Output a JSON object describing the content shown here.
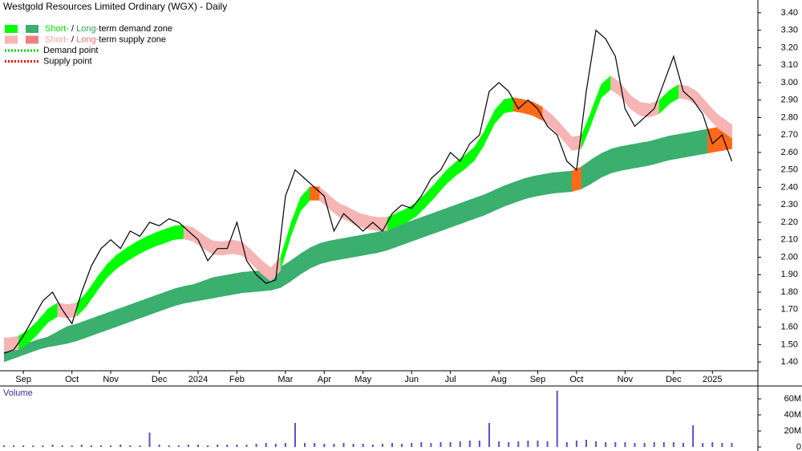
{
  "chart_data": [
    {
      "type": "line",
      "title": "Westgold Resources Limited Ordinary (WGX) - Daily",
      "categories": [
        null,
        null,
        "Sep",
        null,
        null,
        null,
        null,
        "Oct",
        null,
        null,
        null,
        "Nov",
        null,
        null,
        null,
        null,
        "Dec",
        null,
        null,
        null,
        "2024",
        null,
        null,
        null,
        "Feb",
        null,
        null,
        null,
        null,
        "Mar",
        null,
        null,
        null,
        "Apr",
        null,
        null,
        null,
        "May",
        null,
        null,
        null,
        null,
        "Jun",
        null,
        null,
        null,
        "Jul",
        null,
        null,
        null,
        null,
        "Aug",
        null,
        null,
        null,
        "Sep",
        null,
        null,
        null,
        "Oct",
        null,
        null,
        null,
        null,
        "Nov",
        null,
        null,
        null,
        null,
        "Dec",
        null,
        null,
        null,
        "2025",
        null,
        null
      ],
      "series": [
        {
          "color": "#000000",
          "values": [
            1.45,
            1.47,
            1.55,
            1.65,
            1.75,
            1.8,
            1.7,
            1.62,
            1.8,
            1.95,
            2.05,
            2.1,
            2.05,
            2.15,
            2.12,
            2.2,
            2.18,
            2.22,
            2.2,
            2.15,
            2.1,
            1.98,
            2.05,
            2.05,
            2.2,
            1.98,
            1.9,
            1.85,
            1.87,
            2.35,
            2.5,
            2.45,
            2.4,
            2.35,
            2.15,
            2.25,
            2.2,
            2.15,
            2.2,
            2.15,
            2.25,
            2.3,
            2.28,
            2.35,
            2.45,
            2.5,
            2.6,
            2.55,
            2.65,
            2.7,
            2.95,
            3.0,
            2.95,
            2.85,
            2.9,
            2.85,
            2.75,
            2.7,
            2.55,
            2.5,
            2.95,
            3.3,
            3.25,
            3.15,
            2.85,
            2.75,
            2.8,
            2.85,
            3.0,
            3.15,
            2.95,
            2.9,
            2.82,
            2.65,
            2.7,
            2.55
          ]
        }
      ],
      "zones": [
        {
          "upper": [
            1.54,
            1.54,
            1.56,
            1.61,
            1.67,
            1.74,
            1.74,
            1.72,
            1.76,
            1.84,
            1.92,
            1.99,
            2.03,
            2.07,
            2.1,
            2.13,
            2.15,
            2.17,
            2.19,
            2.18,
            2.16,
            2.1,
            2.09,
            2.09,
            2.11,
            2.07,
            2.01,
            1.96,
            1.92,
            2.09,
            2.29,
            2.39,
            2.42,
            2.39,
            2.32,
            2.3,
            2.27,
            2.24,
            2.24,
            2.22,
            2.24,
            2.27,
            2.29,
            2.34,
            2.4,
            2.46,
            2.53,
            2.56,
            2.61,
            2.66,
            2.79,
            2.89,
            2.92,
            2.91,
            2.9,
            2.88,
            2.84,
            2.79,
            2.72,
            2.66,
            2.74,
            2.94,
            3.04,
            3.04,
            2.96,
            2.9,
            2.88,
            2.88,
            2.92,
            2.99,
            2.99,
            2.97,
            2.92,
            2.84,
            2.8,
            2.76
          ],
          "lower": [
            1.46,
            1.46,
            1.48,
            1.53,
            1.59,
            1.66,
            1.66,
            1.64,
            1.68,
            1.76,
            1.84,
            1.91,
            1.95,
            1.99,
            2.02,
            2.05,
            2.07,
            2.09,
            2.11,
            2.1,
            2.08,
            2.02,
            2.01,
            2.01,
            2.03,
            1.99,
            1.93,
            1.88,
            1.84,
            2.01,
            2.21,
            2.31,
            2.34,
            2.31,
            2.24,
            2.22,
            2.19,
            2.16,
            2.16,
            2.14,
            2.16,
            2.19,
            2.21,
            2.26,
            2.32,
            2.38,
            2.45,
            2.48,
            2.53,
            2.58,
            2.71,
            2.81,
            2.84,
            2.83,
            2.82,
            2.8,
            2.76,
            2.71,
            2.64,
            2.58,
            2.66,
            2.86,
            2.96,
            2.96,
            2.88,
            2.82,
            2.8,
            2.8,
            2.84,
            2.91,
            2.91,
            2.89,
            2.84,
            2.76,
            2.72,
            2.68
          ],
          "colors": [
            "#f6b5b5",
            "#f6b5b5",
            "#00ff00",
            "#00ff00",
            "#00ff00",
            "#00ff00",
            "#f6b5b5",
            "#f6b5b5",
            "#00ff00",
            "#00ff00",
            "#00ff00",
            "#00ff00",
            "#00ff00",
            "#00ff00",
            "#00ff00",
            "#00ff00",
            "#00ff00",
            "#00ff00",
            "#00ff00",
            "#f6b5b5",
            "#f6b5b5",
            "#f6b5b5",
            "#f6b5b5",
            "#f6b5b5",
            "#f6b5b5",
            "#f6b5b5",
            "#f6b5b5",
            "#f6b5b5",
            "#f6b5b5",
            "#00ff00",
            "#00ff00",
            "#00ff00",
            "#ff6a1a",
            "#f6b5b5",
            "#f6b5b5",
            "#f6b5b5",
            "#f6b5b5",
            "#f6b5b5",
            "#f6b5b5",
            "#f6b5b5",
            "#00ff00",
            "#00ff00",
            "#00ff00",
            "#00ff00",
            "#00ff00",
            "#00ff00",
            "#00ff00",
            "#00ff00",
            "#00ff00",
            "#00ff00",
            "#00ff00",
            "#00ff00",
            "#00ff00",
            "#ff6a1a",
            "#ff6a1a",
            "#ff6a1a",
            "#f6b5b5",
            "#f6b5b5",
            "#f6b5b5",
            "#f6b5b5",
            "#00ff00",
            "#00ff00",
            "#00ff00",
            "#f6b5b5",
            "#f6b5b5",
            "#f6b5b5",
            "#f6b5b5",
            "#f6b5b5",
            "#00ff00",
            "#00ff00",
            "#f6b5b5",
            "#f6b5b5",
            "#f6b5b5",
            "#f6b5b5",
            "#f6b5b5",
            "#f6b5b5"
          ]
        },
        {
          "upper": [
            1.46,
            1.48,
            1.5,
            1.52,
            1.54,
            1.55,
            1.6,
            1.61,
            1.63,
            1.65,
            1.67,
            1.69,
            1.71,
            1.73,
            1.75,
            1.77,
            1.79,
            1.81,
            1.83,
            1.84,
            1.85,
            1.88,
            1.89,
            1.9,
            1.91,
            1.92,
            1.92,
            1.93,
            1.93,
            1.96,
            2.0,
            2.04,
            2.07,
            2.09,
            2.1,
            2.11,
            2.12,
            2.13,
            2.14,
            2.15,
            2.17,
            2.19,
            2.21,
            2.23,
            2.25,
            2.27,
            2.29,
            2.31,
            2.33,
            2.35,
            2.37,
            2.4,
            2.42,
            2.44,
            2.46,
            2.47,
            2.48,
            2.49,
            2.49,
            2.5,
            2.54,
            2.58,
            2.61,
            2.63,
            2.64,
            2.65,
            2.66,
            2.67,
            2.69,
            2.7,
            2.71,
            2.72,
            2.73,
            2.74,
            2.75,
            2.76
          ],
          "lower": [
            1.4,
            1.42,
            1.44,
            1.46,
            1.48,
            1.49,
            1.5,
            1.51,
            1.53,
            1.55,
            1.57,
            1.59,
            1.61,
            1.63,
            1.65,
            1.67,
            1.69,
            1.71,
            1.73,
            1.74,
            1.75,
            1.76,
            1.77,
            1.78,
            1.79,
            1.8,
            1.8,
            1.81,
            1.81,
            1.84,
            1.88,
            1.92,
            1.95,
            1.97,
            1.98,
            1.99,
            2.0,
            2.01,
            2.02,
            2.03,
            2.05,
            2.07,
            2.09,
            2.11,
            2.13,
            2.15,
            2.17,
            2.19,
            2.21,
            2.23,
            2.25,
            2.28,
            2.3,
            2.32,
            2.34,
            2.35,
            2.36,
            2.37,
            2.37,
            2.38,
            2.4,
            2.44,
            2.47,
            2.49,
            2.5,
            2.51,
            2.52,
            2.53,
            2.55,
            2.56,
            2.57,
            2.58,
            2.59,
            2.6,
            2.61,
            2.62
          ],
          "colors": [
            "#3aaf6e",
            "#3aaf6e",
            "#3aaf6e",
            "#3aaf6e",
            "#3aaf6e",
            "#3aaf6e",
            "#3aaf6e",
            "#3aaf6e",
            "#3aaf6e",
            "#3aaf6e",
            "#3aaf6e",
            "#3aaf6e",
            "#3aaf6e",
            "#3aaf6e",
            "#3aaf6e",
            "#3aaf6e",
            "#3aaf6e",
            "#3aaf6e",
            "#3aaf6e",
            "#3aaf6e",
            "#3aaf6e",
            "#3aaf6e",
            "#3aaf6e",
            "#3aaf6e",
            "#3aaf6e",
            "#3aaf6e",
            "#3aaf6e",
            "#3aaf6e",
            "#3aaf6e",
            "#3aaf6e",
            "#3aaf6e",
            "#3aaf6e",
            "#3aaf6e",
            "#3aaf6e",
            "#3aaf6e",
            "#3aaf6e",
            "#3aaf6e",
            "#3aaf6e",
            "#3aaf6e",
            "#3aaf6e",
            "#3aaf6e",
            "#3aaf6e",
            "#3aaf6e",
            "#3aaf6e",
            "#3aaf6e",
            "#3aaf6e",
            "#3aaf6e",
            "#3aaf6e",
            "#3aaf6e",
            "#3aaf6e",
            "#3aaf6e",
            "#3aaf6e",
            "#3aaf6e",
            "#3aaf6e",
            "#3aaf6e",
            "#3aaf6e",
            "#3aaf6e",
            "#3aaf6e",
            "#3aaf6e",
            "#ff6a1a",
            "#3aaf6e",
            "#3aaf6e",
            "#3aaf6e",
            "#3aaf6e",
            "#3aaf6e",
            "#3aaf6e",
            "#3aaf6e",
            "#3aaf6e",
            "#3aaf6e",
            "#3aaf6e",
            "#3aaf6e",
            "#3aaf6e",
            "#3aaf6e",
            "#ff6a1a",
            "#ff6a1a",
            "#ff6a1a"
          ]
        }
      ],
      "legend": [
        {
          "swatches": [
            "#00ff00",
            "#3aaf6e"
          ],
          "parts": [
            "Short-",
            " / ",
            "Long-",
            "term demand zone"
          ],
          "part_colors": [
            "#00dd00",
            "#000000",
            "#2e9e5e",
            "#000000"
          ]
        },
        {
          "swatches": [
            "#f6b5b5",
            "#f08080"
          ],
          "parts": [
            "Short-",
            " / ",
            "Long-",
            "term supply zone"
          ],
          "part_colors": [
            "#f6a0a0",
            "#000000",
            "#f07070",
            "#000000"
          ]
        },
        {
          "line_color": "#00cc00",
          "parts": [
            "Demand point"
          ],
          "part_colors": [
            "#000000"
          ]
        },
        {
          "line_color": "#ff0000",
          "parts": [
            "Supply point"
          ],
          "part_colors": [
            "#000000"
          ]
        }
      ],
      "ylim": [
        1.35,
        3.45
      ],
      "yticks": [
        {
          "value": 1.4,
          "label": "1.40"
        },
        {
          "value": 1.5,
          "label": "1.50"
        },
        {
          "value": 1.6,
          "label": "1.60"
        },
        {
          "value": 1.7,
          "label": "1.70"
        },
        {
          "value": 1.8,
          "label": "1.80"
        },
        {
          "value": 1.9,
          "label": "1.90"
        },
        {
          "value": 2.0,
          "label": "2.00"
        },
        {
          "value": 2.1,
          "label": "2.10"
        },
        {
          "value": 2.2,
          "label": "2.20"
        },
        {
          "value": 2.3,
          "label": "2.30"
        },
        {
          "value": 2.4,
          "label": "2.40"
        },
        {
          "value": 2.5,
          "label": "2.50"
        },
        {
          "value": 2.6,
          "label": "2.60"
        },
        {
          "value": 2.7,
          "label": "2.70"
        },
        {
          "value": 2.8,
          "label": "2.80"
        },
        {
          "value": 2.9,
          "label": "2.90"
        },
        {
          "value": 3.0,
          "label": "3.00"
        },
        {
          "value": 3.1,
          "label": "3.10"
        },
        {
          "value": 3.2,
          "label": "3.20"
        },
        {
          "value": 3.3,
          "label": "3.30"
        },
        {
          "value": 3.4,
          "label": "3.40"
        }
      ]
    },
    {
      "type": "bar",
      "title": "Volume",
      "color": "#5a4fcf",
      "values": [
        2000000,
        2000000,
        2000000,
        2000000,
        2000000,
        3000000,
        2000000,
        2000000,
        3000000,
        2000000,
        2000000,
        2000000,
        3000000,
        2000000,
        2000000,
        18000000,
        3000000,
        2000000,
        2000000,
        3000000,
        3000000,
        2000000,
        3000000,
        3000000,
        3000000,
        3000000,
        4000000,
        5000000,
        4000000,
        5000000,
        30000000,
        5000000,
        5000000,
        4000000,
        4000000,
        5000000,
        4000000,
        4000000,
        3000000,
        4000000,
        5000000,
        4000000,
        5000000,
        6000000,
        5000000,
        6000000,
        6000000,
        7000000,
        8000000,
        8000000,
        30000000,
        7000000,
        6000000,
        7000000,
        8000000,
        8000000,
        7000000,
        70000000,
        6000000,
        8000000,
        9000000,
        7000000,
        6000000,
        6000000,
        6000000,
        5000000,
        5000000,
        6000000,
        6000000,
        6000000,
        5000000,
        27000000,
        5000000,
        6000000,
        5000000,
        5000000
      ],
      "ylim": [
        0,
        74000000
      ],
      "yticks": [
        0,
        {
          "value": 20000000,
          "label": "20M"
        },
        {
          "value": 40000000,
          "label": "40M"
        },
        {
          "value": 60000000,
          "label": "60M"
        }
      ]
    }
  ]
}
